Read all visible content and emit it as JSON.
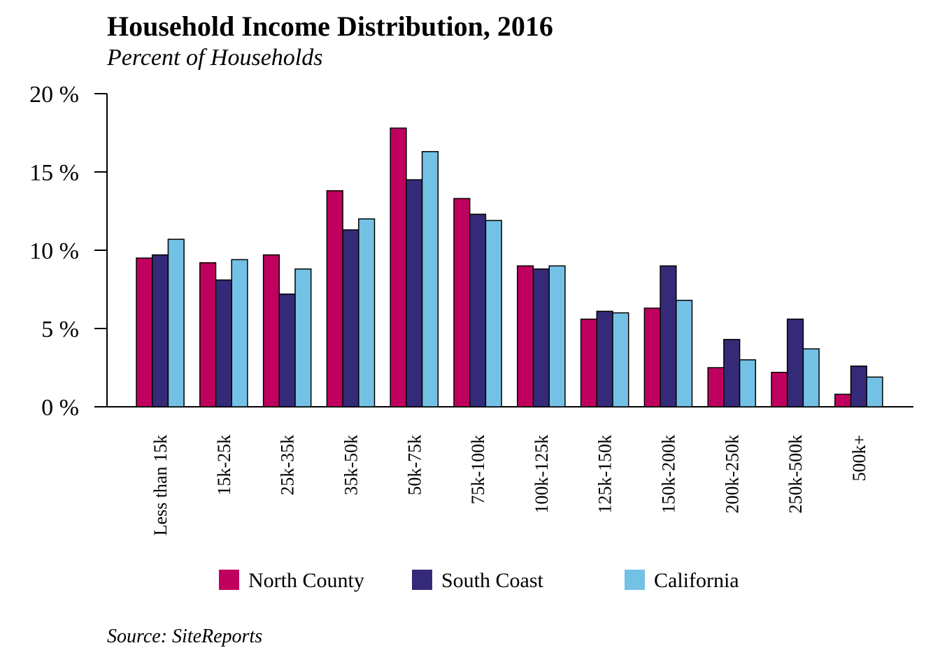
{
  "chart_data": {
    "type": "bar",
    "title": "Household Income Distribution, 2016",
    "subtitle": "Percent of Households",
    "source": "Source: SiteReports",
    "categories": [
      "Less than 15k",
      "15k-25k",
      "25k-35k",
      "35k-50k",
      "50k-75k",
      "75k-100k",
      "100k-125k",
      "125k-150k",
      "150k-200k",
      "200k-250k",
      "250k-500k",
      "500k+"
    ],
    "series": [
      {
        "name": "North County",
        "color": "#c0005f",
        "values": [
          9.5,
          9.2,
          9.7,
          13.8,
          17.8,
          13.3,
          9.0,
          5.6,
          6.3,
          2.5,
          2.2,
          0.8
        ]
      },
      {
        "name": "South Coast",
        "color": "#352a78",
        "values": [
          9.7,
          8.1,
          7.2,
          11.3,
          14.5,
          12.3,
          8.8,
          6.1,
          9.0,
          4.3,
          5.6,
          2.6
        ]
      },
      {
        "name": "California",
        "color": "#74c1e6",
        "values": [
          10.7,
          9.4,
          8.8,
          12.0,
          16.3,
          11.9,
          9.0,
          6.0,
          6.8,
          3.0,
          3.7,
          1.9
        ]
      }
    ],
    "ylim": [
      0,
      20
    ],
    "yticks": [
      0,
      5,
      10,
      15,
      20
    ],
    "ytick_suffix": " %",
    "xlabel": "",
    "ylabel": "",
    "grid": false,
    "legend_position": "bottom"
  }
}
